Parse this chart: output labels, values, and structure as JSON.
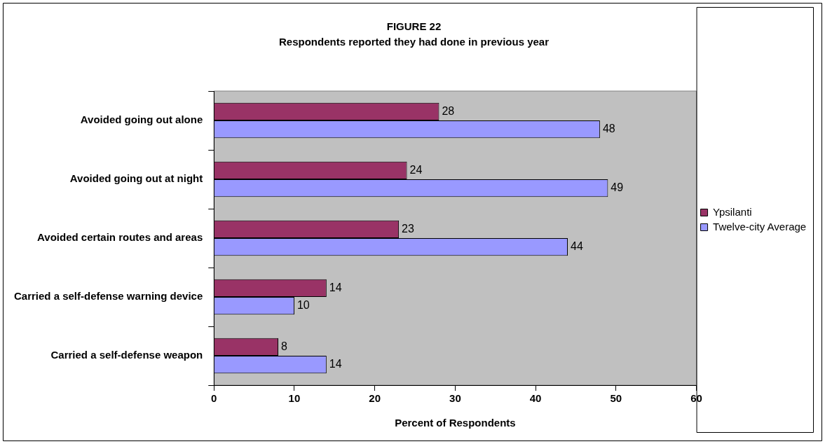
{
  "chart_data": {
    "type": "bar",
    "orientation": "horizontal",
    "title": "FIGURE 22",
    "subtitle": "Respondents reported they had done in previous year",
    "xlabel": "Percent of Respondents",
    "categories": [
      "Avoided going out alone",
      "Avoided going out at night",
      "Avoided certain routes and areas",
      "Carried a self-defense warning device",
      "Carried a self-defense weapon"
    ],
    "series": [
      {
        "name": "Ypsilanti",
        "color": "#993366",
        "values": [
          28,
          24,
          23,
          14,
          8
        ]
      },
      {
        "name": "Twelve-city Average",
        "color": "#9999ff",
        "values": [
          48,
          49,
          44,
          10,
          14
        ]
      }
    ],
    "xlim": [
      0,
      60
    ],
    "xticks": [
      0,
      10,
      20,
      30,
      40,
      50,
      60
    ],
    "data_labels": true,
    "legend": "right",
    "grid": false
  }
}
